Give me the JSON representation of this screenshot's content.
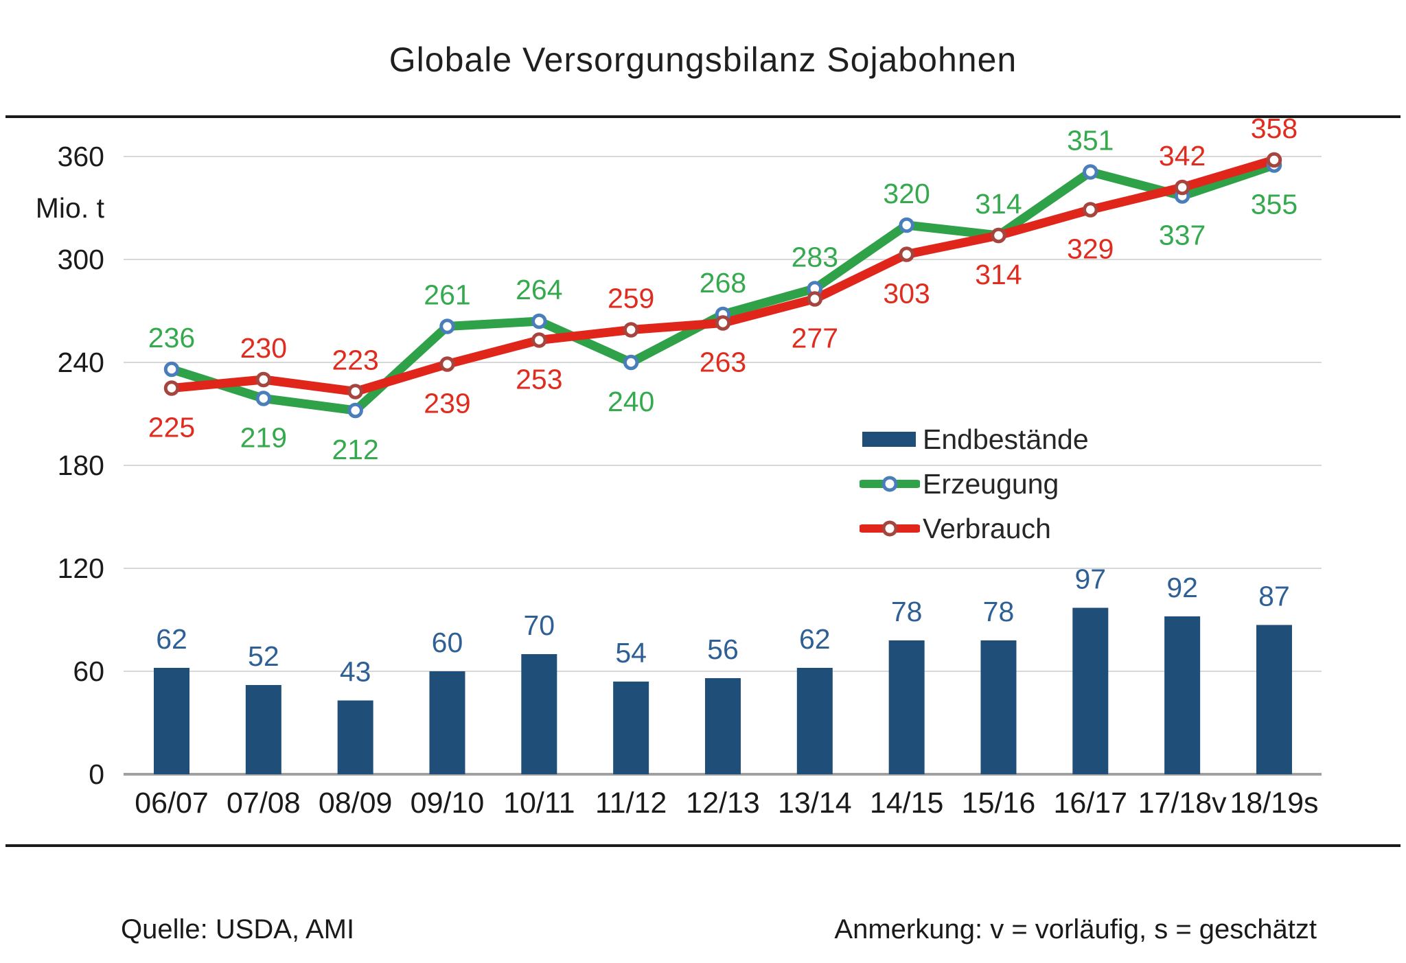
{
  "title": "Globale Versorgungsbilanz Sojabohnen",
  "y_axis": {
    "unit_label": "Mio. t",
    "tick_step": 60,
    "min": 0,
    "max": 360
  },
  "chart_data": {
    "type": "bar+line",
    "categories": [
      "06/07",
      "07/08",
      "08/09",
      "09/10",
      "10/11",
      "11/12",
      "12/13",
      "13/14",
      "14/15",
      "15/16",
      "16/17",
      "17/18v",
      "18/19s"
    ],
    "series": [
      {
        "name": "Endbestände",
        "type": "bar",
        "color": "#1F4E79",
        "label_color": "#2E6095",
        "values": [
          62,
          52,
          43,
          60,
          70,
          54,
          56,
          62,
          78,
          78,
          97,
          92,
          87
        ]
      },
      {
        "name": "Erzeugung",
        "type": "line",
        "color": "#2FA148",
        "marker_stroke": "#4A7EBB",
        "label_color": "#35A94E",
        "values": [
          236,
          219,
          212,
          261,
          264,
          240,
          268,
          283,
          320,
          314,
          351,
          337,
          355
        ],
        "label_side": [
          "above",
          "below",
          "below",
          "above",
          "above",
          "below",
          "above",
          "above",
          "above",
          "above",
          "above",
          "below",
          "below"
        ]
      },
      {
        "name": "Verbrauch",
        "type": "line",
        "color": "#E0251B",
        "marker_stroke": "#A6453D",
        "label_color": "#E02B1F",
        "values": [
          225,
          230,
          223,
          239,
          253,
          259,
          263,
          277,
          303,
          314,
          329,
          342,
          358
        ],
        "label_side": [
          "below",
          "above",
          "above",
          "below",
          "below",
          "above",
          "below",
          "below",
          "below",
          "below",
          "below",
          "above",
          "above"
        ]
      }
    ],
    "ylim": [
      0,
      380
    ],
    "grid": true,
    "gridline_color": "#D8D8D8",
    "axis_line_color": "#A0A0A0",
    "tick_label_color": "#1a1a1a",
    "legend_position": "right-middle"
  },
  "legend": {
    "items": [
      {
        "label": "Endbestände",
        "swatch": "bar-swatch"
      },
      {
        "label": "Erzeugung",
        "swatch": "line-marker-swatch"
      },
      {
        "label": "Verbrauch",
        "swatch": "line-marker-swatch"
      }
    ]
  },
  "footer": {
    "source": "Quelle: USDA, AMI",
    "note": "Anmerkung: v = vorläufig, s = geschätzt"
  }
}
